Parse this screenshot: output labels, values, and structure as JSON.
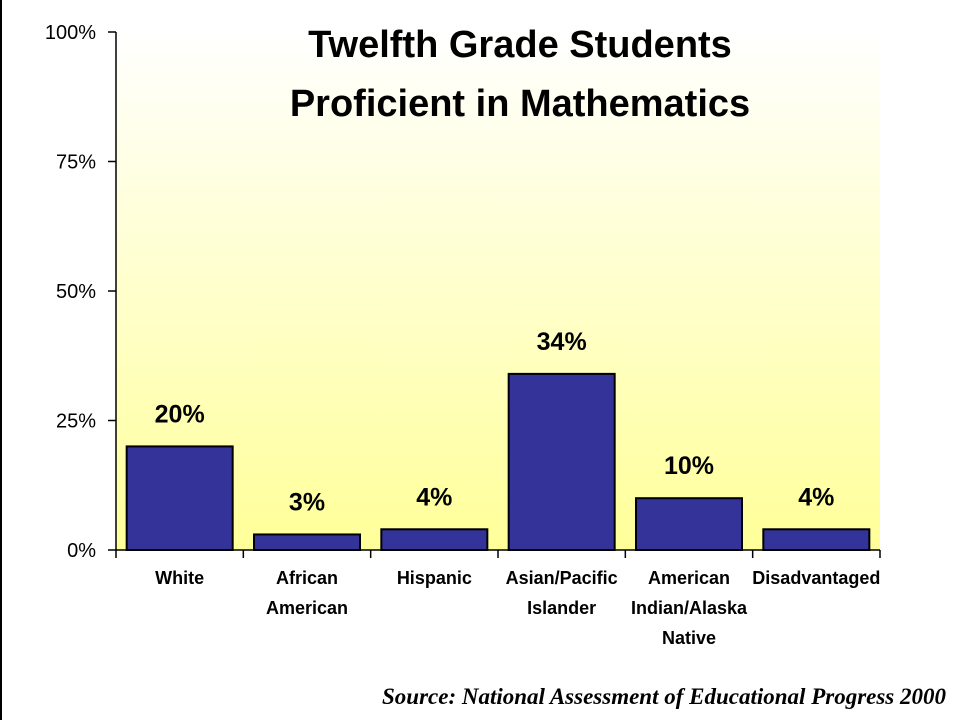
{
  "chart_data": {
    "type": "bar",
    "title_lines": [
      "Twelfth Grade Students",
      "Proficient in Mathematics"
    ],
    "categories": [
      [
        "White"
      ],
      [
        "African",
        "American"
      ],
      [
        "Hispanic"
      ],
      [
        "Asian/Pacific",
        "Islander"
      ],
      [
        "American",
        "Indian/Alaska",
        "Native"
      ],
      [
        "Disadvantaged"
      ]
    ],
    "values": [
      20,
      3,
      4,
      34,
      10,
      4
    ],
    "data_labels": [
      "20%",
      "3%",
      "4%",
      "34%",
      "10%",
      "4%"
    ],
    "ylim": [
      0,
      100
    ],
    "yticks": [
      0,
      25,
      50,
      75,
      100
    ],
    "ytick_labels": [
      "0%",
      "25%",
      "50%",
      "75%",
      "100%"
    ],
    "grid": false,
    "legend": "none",
    "colors": {
      "bar": "#333399",
      "plot_bg_top": "#ffffff",
      "plot_bg_bottom": "#ffff99"
    }
  },
  "source": "Source: National Assessment of Educational Progress 2000"
}
